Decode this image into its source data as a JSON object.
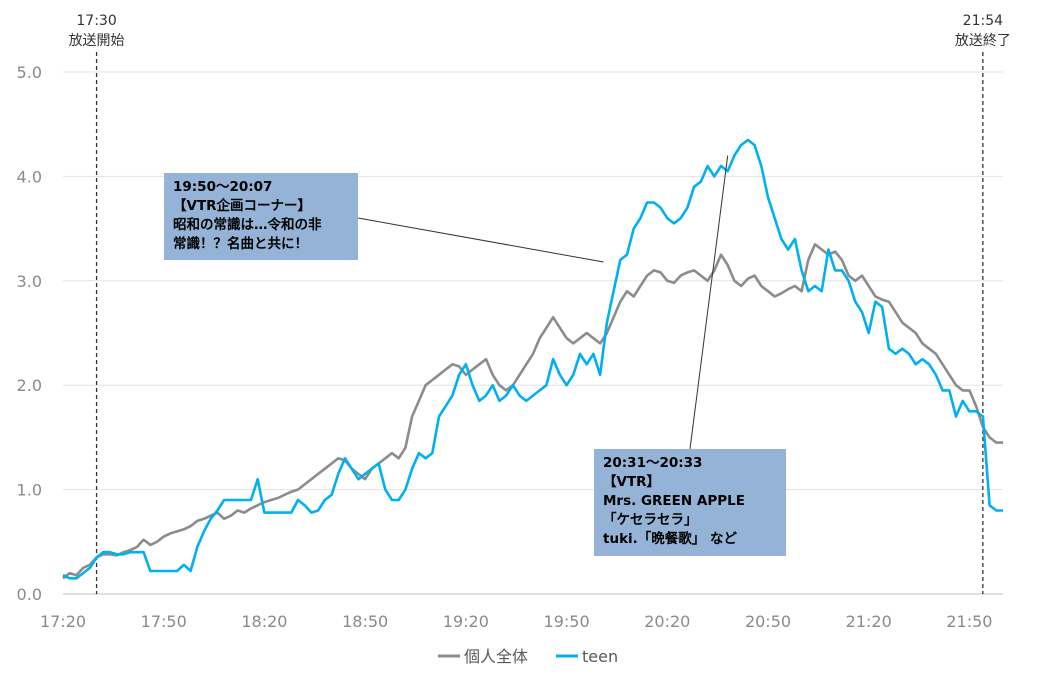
{
  "chart_data": {
    "type": "line",
    "x_ticks": [
      "17:20",
      "17:50",
      "18:20",
      "18:50",
      "19:20",
      "19:50",
      "20:20",
      "20:50",
      "21:20",
      "21:50"
    ],
    "y_ticks": [
      "0.0",
      "1.0",
      "2.0",
      "3.0",
      "4.0",
      "5.0"
    ],
    "ylim": [
      0,
      5
    ],
    "xlim_minutes": [
      1040,
      1320
    ],
    "grid": "horizontal",
    "legend_position": "bottom",
    "markers": [
      {
        "time_min": 1050,
        "time": "17:30",
        "label": "放送開始"
      },
      {
        "time_min": 1314,
        "time": "21:54",
        "label": "放送終了"
      }
    ],
    "series": [
      {
        "name": "個人全体",
        "color": "#8c8c8c",
        "points": [
          [
            1040,
            0.15
          ],
          [
            1042,
            0.2
          ],
          [
            1044,
            0.18
          ],
          [
            1046,
            0.25
          ],
          [
            1048,
            0.28
          ],
          [
            1050,
            0.35
          ],
          [
            1052,
            0.38
          ],
          [
            1054,
            0.38
          ],
          [
            1056,
            0.37
          ],
          [
            1058,
            0.4
          ],
          [
            1060,
            0.42
          ],
          [
            1062,
            0.45
          ],
          [
            1064,
            0.52
          ],
          [
            1066,
            0.47
          ],
          [
            1068,
            0.5
          ],
          [
            1070,
            0.55
          ],
          [
            1072,
            0.58
          ],
          [
            1074,
            0.6
          ],
          [
            1076,
            0.62
          ],
          [
            1078,
            0.65
          ],
          [
            1080,
            0.7
          ],
          [
            1082,
            0.72
          ],
          [
            1084,
            0.75
          ],
          [
            1086,
            0.78
          ],
          [
            1088,
            0.72
          ],
          [
            1090,
            0.75
          ],
          [
            1092,
            0.8
          ],
          [
            1094,
            0.78
          ],
          [
            1096,
            0.82
          ],
          [
            1098,
            0.85
          ],
          [
            1100,
            0.88
          ],
          [
            1102,
            0.9
          ],
          [
            1104,
            0.92
          ],
          [
            1106,
            0.95
          ],
          [
            1108,
            0.98
          ],
          [
            1110,
            1.0
          ],
          [
            1112,
            1.05
          ],
          [
            1114,
            1.1
          ],
          [
            1116,
            1.15
          ],
          [
            1118,
            1.2
          ],
          [
            1120,
            1.25
          ],
          [
            1122,
            1.3
          ],
          [
            1124,
            1.28
          ],
          [
            1126,
            1.2
          ],
          [
            1128,
            1.15
          ],
          [
            1130,
            1.1
          ],
          [
            1132,
            1.2
          ],
          [
            1134,
            1.25
          ],
          [
            1136,
            1.3
          ],
          [
            1138,
            1.35
          ],
          [
            1140,
            1.3
          ],
          [
            1142,
            1.4
          ],
          [
            1144,
            1.7
          ],
          [
            1146,
            1.85
          ],
          [
            1148,
            2.0
          ],
          [
            1150,
            2.05
          ],
          [
            1152,
            2.1
          ],
          [
            1154,
            2.15
          ],
          [
            1156,
            2.2
          ],
          [
            1158,
            2.18
          ],
          [
            1160,
            2.1
          ],
          [
            1162,
            2.15
          ],
          [
            1164,
            2.2
          ],
          [
            1166,
            2.25
          ],
          [
            1168,
            2.1
          ],
          [
            1170,
            2.0
          ],
          [
            1172,
            1.95
          ],
          [
            1174,
            2.0
          ],
          [
            1176,
            2.1
          ],
          [
            1178,
            2.2
          ],
          [
            1180,
            2.3
          ],
          [
            1182,
            2.45
          ],
          [
            1184,
            2.55
          ],
          [
            1186,
            2.65
          ],
          [
            1188,
            2.55
          ],
          [
            1190,
            2.45
          ],
          [
            1192,
            2.4
          ],
          [
            1194,
            2.45
          ],
          [
            1196,
            2.5
          ],
          [
            1198,
            2.45
          ],
          [
            1200,
            2.4
          ],
          [
            1202,
            2.5
          ],
          [
            1204,
            2.65
          ],
          [
            1206,
            2.8
          ],
          [
            1208,
            2.9
          ],
          [
            1210,
            2.85
          ],
          [
            1212,
            2.95
          ],
          [
            1214,
            3.05
          ],
          [
            1216,
            3.1
          ],
          [
            1218,
            3.08
          ],
          [
            1220,
            3.0
          ],
          [
            1222,
            2.98
          ],
          [
            1224,
            3.05
          ],
          [
            1226,
            3.08
          ],
          [
            1228,
            3.1
          ],
          [
            1230,
            3.05
          ],
          [
            1232,
            3.0
          ],
          [
            1234,
            3.1
          ],
          [
            1236,
            3.25
          ],
          [
            1238,
            3.15
          ],
          [
            1240,
            3.0
          ],
          [
            1242,
            2.95
          ],
          [
            1244,
            3.02
          ],
          [
            1246,
            3.05
          ],
          [
            1248,
            2.95
          ],
          [
            1250,
            2.9
          ],
          [
            1252,
            2.85
          ],
          [
            1254,
            2.88
          ],
          [
            1256,
            2.92
          ],
          [
            1258,
            2.95
          ],
          [
            1260,
            2.9
          ],
          [
            1262,
            3.2
          ],
          [
            1264,
            3.35
          ],
          [
            1266,
            3.3
          ],
          [
            1268,
            3.25
          ],
          [
            1270,
            3.28
          ],
          [
            1272,
            3.2
          ],
          [
            1274,
            3.05
          ],
          [
            1276,
            3.0
          ],
          [
            1278,
            3.05
          ],
          [
            1280,
            2.95
          ],
          [
            1282,
            2.85
          ],
          [
            1284,
            2.82
          ],
          [
            1286,
            2.8
          ],
          [
            1288,
            2.7
          ],
          [
            1290,
            2.6
          ],
          [
            1292,
            2.55
          ],
          [
            1294,
            2.5
          ],
          [
            1296,
            2.4
          ],
          [
            1298,
            2.35
          ],
          [
            1300,
            2.3
          ],
          [
            1302,
            2.2
          ],
          [
            1304,
            2.1
          ],
          [
            1306,
            2.0
          ],
          [
            1308,
            1.95
          ],
          [
            1310,
            1.95
          ],
          [
            1312,
            1.8
          ],
          [
            1314,
            1.6
          ],
          [
            1316,
            1.5
          ],
          [
            1318,
            1.45
          ],
          [
            1320,
            1.45
          ]
        ]
      },
      {
        "name": "teen",
        "color": "#00b0f0",
        "points": [
          [
            1040,
            0.18
          ],
          [
            1042,
            0.15
          ],
          [
            1044,
            0.15
          ],
          [
            1046,
            0.2
          ],
          [
            1048,
            0.25
          ],
          [
            1050,
            0.35
          ],
          [
            1052,
            0.4
          ],
          [
            1054,
            0.4
          ],
          [
            1056,
            0.38
          ],
          [
            1058,
            0.38
          ],
          [
            1060,
            0.4
          ],
          [
            1062,
            0.4
          ],
          [
            1064,
            0.4
          ],
          [
            1066,
            0.22
          ],
          [
            1068,
            0.22
          ],
          [
            1070,
            0.22
          ],
          [
            1072,
            0.22
          ],
          [
            1074,
            0.22
          ],
          [
            1076,
            0.28
          ],
          [
            1078,
            0.22
          ],
          [
            1080,
            0.45
          ],
          [
            1082,
            0.6
          ],
          [
            1084,
            0.72
          ],
          [
            1086,
            0.8
          ],
          [
            1088,
            0.9
          ],
          [
            1090,
            0.9
          ],
          [
            1092,
            0.9
          ],
          [
            1094,
            0.9
          ],
          [
            1096,
            0.9
          ],
          [
            1098,
            1.1
          ],
          [
            1100,
            0.78
          ],
          [
            1102,
            0.78
          ],
          [
            1104,
            0.78
          ],
          [
            1106,
            0.78
          ],
          [
            1108,
            0.78
          ],
          [
            1110,
            0.9
          ],
          [
            1112,
            0.85
          ],
          [
            1114,
            0.78
          ],
          [
            1116,
            0.8
          ],
          [
            1118,
            0.9
          ],
          [
            1120,
            0.95
          ],
          [
            1122,
            1.15
          ],
          [
            1124,
            1.3
          ],
          [
            1126,
            1.2
          ],
          [
            1128,
            1.1
          ],
          [
            1130,
            1.15
          ],
          [
            1132,
            1.2
          ],
          [
            1134,
            1.25
          ],
          [
            1136,
            1.0
          ],
          [
            1138,
            0.9
          ],
          [
            1140,
            0.9
          ],
          [
            1142,
            1.0
          ],
          [
            1144,
            1.2
          ],
          [
            1146,
            1.35
          ],
          [
            1148,
            1.3
          ],
          [
            1150,
            1.35
          ],
          [
            1152,
            1.7
          ],
          [
            1154,
            1.8
          ],
          [
            1156,
            1.9
          ],
          [
            1158,
            2.1
          ],
          [
            1160,
            2.2
          ],
          [
            1162,
            2.0
          ],
          [
            1164,
            1.85
          ],
          [
            1166,
            1.9
          ],
          [
            1168,
            2.0
          ],
          [
            1170,
            1.85
          ],
          [
            1172,
            1.9
          ],
          [
            1174,
            2.0
          ],
          [
            1176,
            1.9
          ],
          [
            1178,
            1.85
          ],
          [
            1180,
            1.9
          ],
          [
            1182,
            1.95
          ],
          [
            1184,
            2.0
          ],
          [
            1186,
            2.25
          ],
          [
            1188,
            2.1
          ],
          [
            1190,
            2.0
          ],
          [
            1192,
            2.1
          ],
          [
            1194,
            2.3
          ],
          [
            1196,
            2.2
          ],
          [
            1198,
            2.3
          ],
          [
            1200,
            2.1
          ],
          [
            1202,
            2.6
          ],
          [
            1204,
            2.9
          ],
          [
            1206,
            3.2
          ],
          [
            1208,
            3.25
          ],
          [
            1210,
            3.5
          ],
          [
            1212,
            3.6
          ],
          [
            1214,
            3.75
          ],
          [
            1216,
            3.75
          ],
          [
            1218,
            3.7
          ],
          [
            1220,
            3.6
          ],
          [
            1222,
            3.55
          ],
          [
            1224,
            3.6
          ],
          [
            1226,
            3.7
          ],
          [
            1228,
            3.9
          ],
          [
            1230,
            3.95
          ],
          [
            1232,
            4.1
          ],
          [
            1234,
            4.0
          ],
          [
            1236,
            4.1
          ],
          [
            1238,
            4.05
          ],
          [
            1240,
            4.2
          ],
          [
            1242,
            4.3
          ],
          [
            1244,
            4.35
          ],
          [
            1246,
            4.3
          ],
          [
            1248,
            4.1
          ],
          [
            1250,
            3.8
          ],
          [
            1252,
            3.6
          ],
          [
            1254,
            3.4
          ],
          [
            1256,
            3.3
          ],
          [
            1258,
            3.4
          ],
          [
            1260,
            3.1
          ],
          [
            1262,
            2.9
          ],
          [
            1264,
            2.95
          ],
          [
            1266,
            2.9
          ],
          [
            1268,
            3.3
          ],
          [
            1270,
            3.1
          ],
          [
            1272,
            3.1
          ],
          [
            1274,
            3.0
          ],
          [
            1276,
            2.8
          ],
          [
            1278,
            2.7
          ],
          [
            1280,
            2.5
          ],
          [
            1282,
            2.8
          ],
          [
            1284,
            2.75
          ],
          [
            1286,
            2.35
          ],
          [
            1288,
            2.3
          ],
          [
            1290,
            2.35
          ],
          [
            1292,
            2.3
          ],
          [
            1294,
            2.2
          ],
          [
            1296,
            2.25
          ],
          [
            1298,
            2.2
          ],
          [
            1300,
            2.1
          ],
          [
            1302,
            1.95
          ],
          [
            1304,
            1.95
          ],
          [
            1306,
            1.7
          ],
          [
            1308,
            1.85
          ],
          [
            1310,
            1.75
          ],
          [
            1312,
            1.75
          ],
          [
            1314,
            1.7
          ],
          [
            1316,
            0.85
          ],
          [
            1318,
            0.8
          ],
          [
            1320,
            0.8
          ]
        ]
      }
    ]
  },
  "callouts": [
    {
      "lines": [
        "19:50～20:07",
        "【VTR企画コーナー】",
        "昭和の常識は…令和の非",
        "常識！？名曲と共に！"
      ],
      "point": [
        1201,
        3.18
      ]
    },
    {
      "lines": [
        "20:31～20:33",
        "【VTR】",
        "Mrs. GREEN APPLE",
        "「ケセラセラ」",
        "tuki.「晩餐歌」 など"
      ],
      "point": [
        1238,
        4.2
      ]
    }
  ]
}
